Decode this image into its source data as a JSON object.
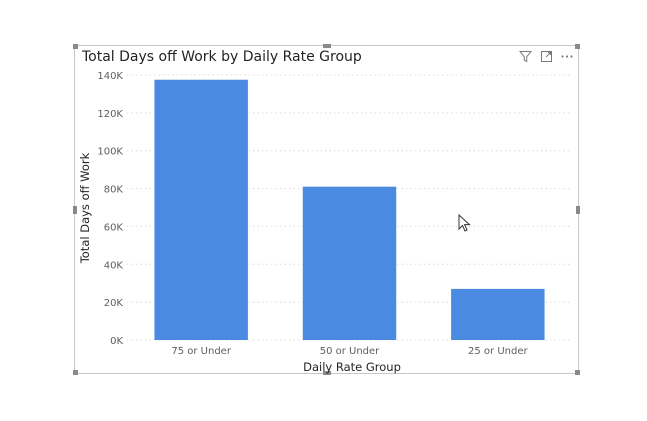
{
  "visual": {
    "toolbar": [
      "filter-icon",
      "focus-mode-icon",
      "more-options-icon"
    ]
  },
  "chart_data": {
    "type": "bar",
    "title": "Total Days off Work by Daily Rate Group",
    "xlabel": "Daily Rate Group",
    "ylabel": "Total Days off Work",
    "categories": [
      "75 or Under",
      "50 or Under",
      "25 or Under"
    ],
    "values": [
      137500,
      81000,
      27000
    ],
    "ylim": [
      0,
      140000
    ],
    "yticks": [
      0,
      20000,
      40000,
      60000,
      80000,
      100000,
      120000,
      140000
    ],
    "ytick_labels": [
      "0K",
      "20K",
      "40K",
      "60K",
      "80K",
      "100K",
      "120K",
      "140K"
    ],
    "grid": true,
    "legend": false,
    "colors": {
      "bar": "#4a8ae0",
      "grid": "#dcdcdc",
      "text": "#605e5c",
      "title": "#252423"
    }
  }
}
